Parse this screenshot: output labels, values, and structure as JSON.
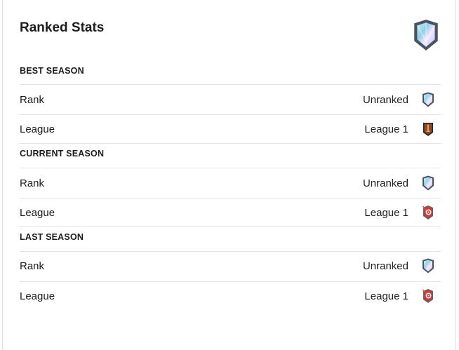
{
  "title": "Ranked Stats",
  "header_icon": "unranked-shield-icon",
  "sections": [
    {
      "heading": "BEST SEASON",
      "rows": [
        {
          "label": "Rank",
          "value": "Unranked",
          "icon": "unranked-shield-icon"
        },
        {
          "label": "League",
          "value": "League 1",
          "icon": "league-sword-badge-icon"
        }
      ]
    },
    {
      "heading": "CURRENT SEASON",
      "rows": [
        {
          "label": "Rank",
          "value": "Unranked",
          "icon": "unranked-shield-icon"
        },
        {
          "label": "League",
          "value": "League 1",
          "icon": "league-target-badge-icon"
        }
      ]
    },
    {
      "heading": "LAST SEASON",
      "rows": [
        {
          "label": "Rank",
          "value": "Unranked",
          "icon": "unranked-shield-icon"
        },
        {
          "label": "League",
          "value": "League 1",
          "icon": "league-target-badge-icon"
        }
      ]
    }
  ]
}
